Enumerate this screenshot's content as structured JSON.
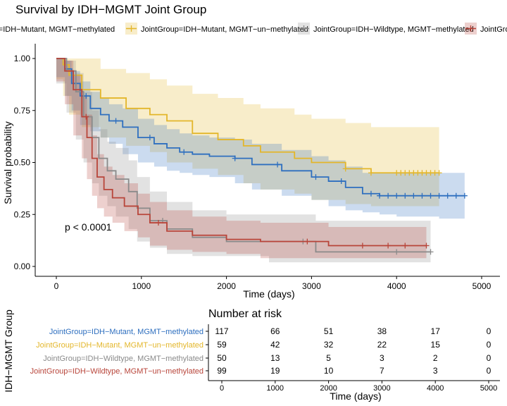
{
  "title": "Survival by IDH−MGMT Joint Group",
  "colors": {
    "g1": "#2E6FBF",
    "g2": "#E3B62A",
    "g3": "#8A8A8A",
    "g4": "#B8453A"
  },
  "chart_data": {
    "type": "line",
    "subtype": "kaplan-meier",
    "title": "Survival by IDH−MGMT Joint Group",
    "xlabel": "Time (days)",
    "ylabel": "Survival probability",
    "xlim": [
      0,
      5000
    ],
    "ylim": [
      0,
      1
    ],
    "x_ticks": [
      0,
      1000,
      2000,
      3000,
      4000,
      5000
    ],
    "y_ticks": [
      0,
      0.25,
      0.5,
      0.75,
      1.0
    ],
    "y_tick_labels": [
      "0.00",
      "0.25",
      "0.50",
      "0.75",
      "1.00"
    ],
    "legend_position": "top",
    "annotation": "p < 0.0001",
    "series": [
      {
        "name": "JointGroup=IDH−Mutant, MGMT−methylated",
        "color": "g1",
        "x": [
          0,
          100,
          180,
          280,
          400,
          520,
          620,
          780,
          960,
          1150,
          1300,
          1450,
          1600,
          1800,
          2100,
          2300,
          2650,
          3000,
          3200,
          3400,
          3600,
          3800,
          4000,
          4500,
          4800
        ],
        "y": [
          1.0,
          0.95,
          0.88,
          0.82,
          0.76,
          0.73,
          0.7,
          0.67,
          0.62,
          0.59,
          0.57,
          0.55,
          0.54,
          0.53,
          0.52,
          0.49,
          0.46,
          0.43,
          0.41,
          0.38,
          0.35,
          0.34,
          0.34,
          0.34,
          0.34
        ],
        "upper": [
          1.0,
          0.99,
          0.94,
          0.89,
          0.84,
          0.81,
          0.78,
          0.76,
          0.71,
          0.68,
          0.66,
          0.64,
          0.63,
          0.62,
          0.61,
          0.59,
          0.56,
          0.53,
          0.51,
          0.48,
          0.45,
          0.45,
          0.45,
          0.45,
          0.45
        ],
        "lower": [
          1.0,
          0.91,
          0.82,
          0.75,
          0.68,
          0.65,
          0.62,
          0.59,
          0.54,
          0.5,
          0.48,
          0.46,
          0.45,
          0.44,
          0.43,
          0.4,
          0.37,
          0.34,
          0.32,
          0.29,
          0.27,
          0.26,
          0.25,
          0.24,
          0.23
        ],
        "censor_x": [
          350,
          700,
          1100,
          1500,
          2100,
          2600,
          3050,
          3350,
          3700,
          3800,
          3900,
          4000,
          4100,
          4200,
          4300,
          4400,
          4500,
          4600,
          4700,
          4800
        ]
      },
      {
        "name": "JointGroup=IDH−Mutant, MGMT−un−methylated",
        "color": "g2",
        "x": [
          0,
          80,
          150,
          300,
          520,
          820,
          1100,
          1300,
          1600,
          1900,
          2200,
          2400,
          2800,
          3000,
          3400,
          3700,
          4500
        ],
        "y": [
          1.0,
          0.97,
          0.92,
          0.85,
          0.81,
          0.76,
          0.73,
          0.7,
          0.64,
          0.61,
          0.58,
          0.55,
          0.52,
          0.5,
          0.47,
          0.45,
          0.45
        ],
        "upper": [
          1.0,
          1.0,
          1.0,
          1.0,
          0.95,
          0.93,
          0.9,
          0.87,
          0.83,
          0.81,
          0.78,
          0.76,
          0.73,
          0.71,
          0.69,
          0.67,
          0.6
        ],
        "lower": [
          1.0,
          0.9,
          0.82,
          0.73,
          0.67,
          0.62,
          0.58,
          0.55,
          0.5,
          0.47,
          0.44,
          0.4,
          0.37,
          0.35,
          0.32,
          0.3,
          0.29
        ],
        "censor_x": [
          3400,
          3700,
          4000,
          4050,
          4100,
          4150,
          4200,
          4250,
          4300,
          4350,
          4400,
          4450,
          4500
        ]
      },
      {
        "name": "JointGroup=IDH−Wildtype, MGMT−methylated",
        "color": "g3",
        "x": [
          0,
          120,
          230,
          320,
          420,
          500,
          600,
          700,
          850,
          950,
          1100,
          1300,
          1600,
          2000,
          2500,
          3050,
          4400
        ],
        "y": [
          1.0,
          0.94,
          0.84,
          0.72,
          0.62,
          0.52,
          0.46,
          0.42,
          0.36,
          0.28,
          0.22,
          0.18,
          0.14,
          0.12,
          0.12,
          0.07,
          0.07
        ],
        "upper": [
          1.0,
          0.99,
          0.93,
          0.84,
          0.75,
          0.66,
          0.6,
          0.57,
          0.51,
          0.43,
          0.36,
          0.31,
          0.27,
          0.25,
          0.25,
          0.22,
          0.22
        ],
        "lower": [
          1.0,
          0.88,
          0.74,
          0.61,
          0.5,
          0.4,
          0.34,
          0.29,
          0.24,
          0.18,
          0.12,
          0.09,
          0.06,
          0.05,
          0.05,
          0.02,
          0.02
        ],
        "censor_x": [
          1250,
          2900,
          4000,
          4400
        ]
      },
      {
        "name": "JointGroup=IDH−Wildtype, MGMT−un−methylated",
        "color": "g4",
        "x": [
          0,
          100,
          200,
          300,
          360,
          420,
          480,
          560,
          660,
          800,
          960,
          1100,
          1300,
          1600,
          2000,
          2400,
          3200,
          4350
        ],
        "y": [
          1.0,
          0.94,
          0.85,
          0.72,
          0.62,
          0.52,
          0.43,
          0.37,
          0.33,
          0.29,
          0.25,
          0.21,
          0.17,
          0.15,
          0.13,
          0.12,
          0.1,
          0.1
        ],
        "upper": [
          1.0,
          0.99,
          0.92,
          0.82,
          0.73,
          0.63,
          0.54,
          0.48,
          0.44,
          0.4,
          0.35,
          0.31,
          0.27,
          0.24,
          0.22,
          0.21,
          0.19,
          0.19
        ],
        "lower": [
          1.0,
          0.89,
          0.78,
          0.63,
          0.52,
          0.42,
          0.34,
          0.28,
          0.24,
          0.21,
          0.17,
          0.14,
          0.1,
          0.08,
          0.07,
          0.06,
          0.04,
          0.04
        ],
        "censor_x": [
          350,
          1200,
          2950,
          3600,
          3900,
          4100,
          4350
        ]
      }
    ]
  },
  "risk_table": {
    "title": "Number at risk",
    "ylabel": "IDH−MGMT Group",
    "xlabel": "Time (days)",
    "x_ticks": [
      0,
      1000,
      2000,
      3000,
      4000,
      5000
    ],
    "rows": [
      {
        "label": "JointGroup=IDH−Mutant, MGMT−methylated",
        "color": "g1",
        "values": [
          117,
          66,
          51,
          38,
          17,
          0
        ]
      },
      {
        "label": "JointGroup=IDH−Mutant, MGMT−un−methylated",
        "color": "g2",
        "values": [
          59,
          42,
          32,
          22,
          15,
          0
        ]
      },
      {
        "label": "JointGroup=IDH−Wildtype, MGMT−methylated",
        "color": "g3",
        "values": [
          50,
          13,
          5,
          3,
          2,
          0
        ]
      },
      {
        "label": "JointGroup=IDH−Wildtype, MGMT−un−methylated",
        "color": "g4",
        "values": [
          99,
          19,
          10,
          7,
          3,
          0
        ]
      }
    ]
  }
}
